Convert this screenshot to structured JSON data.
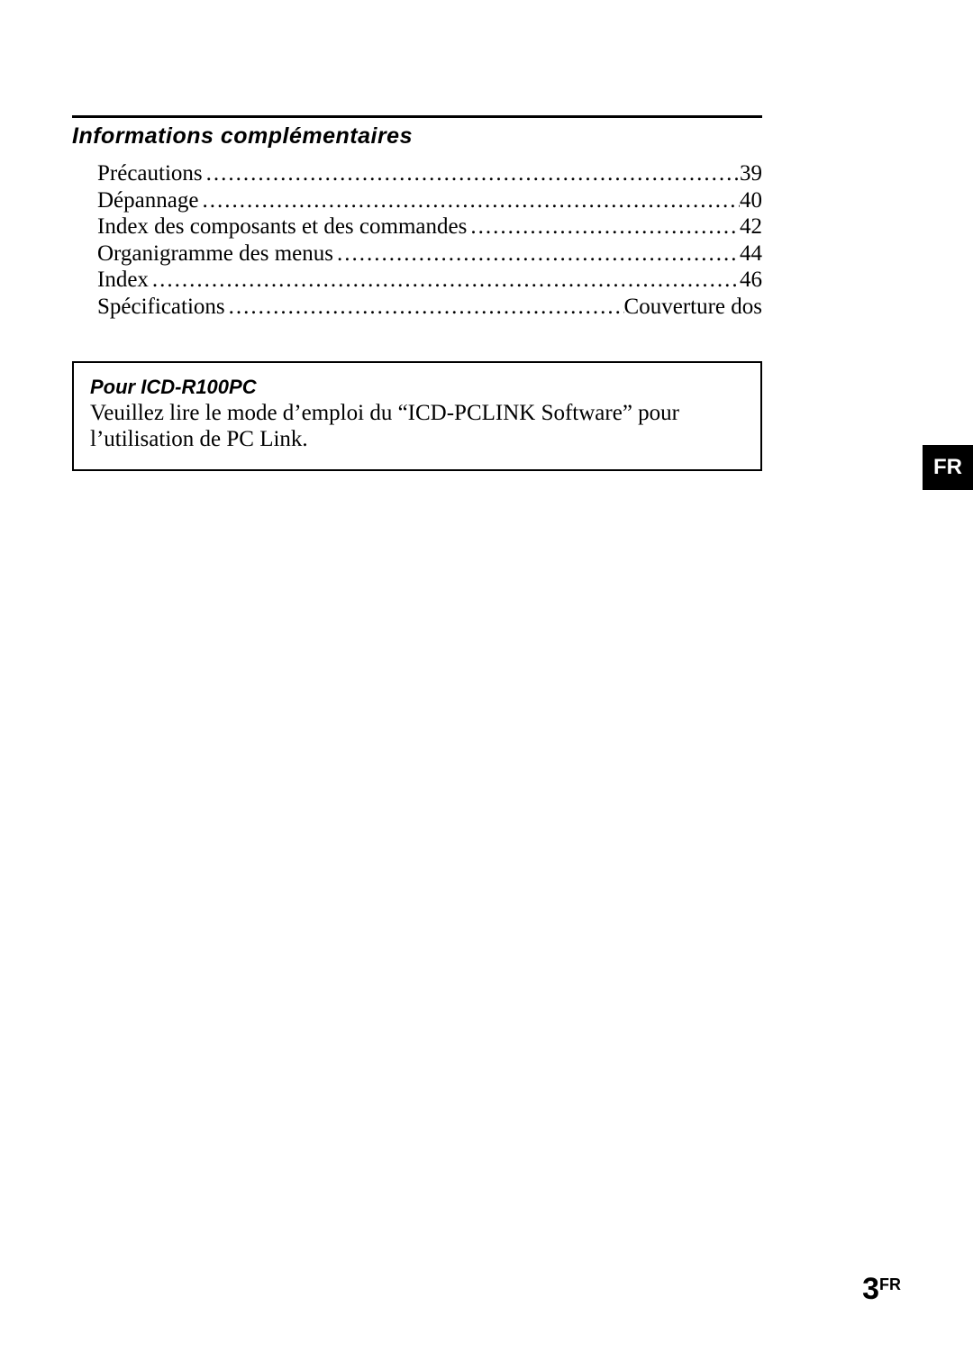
{
  "section": {
    "heading": "Informations complémentaires"
  },
  "toc": [
    {
      "label": "Précautions",
      "page": "39"
    },
    {
      "label": "Dépannage",
      "page": "40"
    },
    {
      "label": "Index des composants et des commandes",
      "page": "42"
    },
    {
      "label": "Organigramme des menus",
      "page": "44"
    },
    {
      "label": "Index",
      "page": "46"
    },
    {
      "label": "Spécifications",
      "page": "Couverture dos"
    }
  ],
  "note": {
    "title": "Pour ICD-R100PC",
    "body": "Veuillez lire le mode d’emploi du “ICD-PCLINK Software” pour l’utilisation de PC Link."
  },
  "side_tab": "FR",
  "footer": {
    "num": "3",
    "lang": "FR"
  }
}
